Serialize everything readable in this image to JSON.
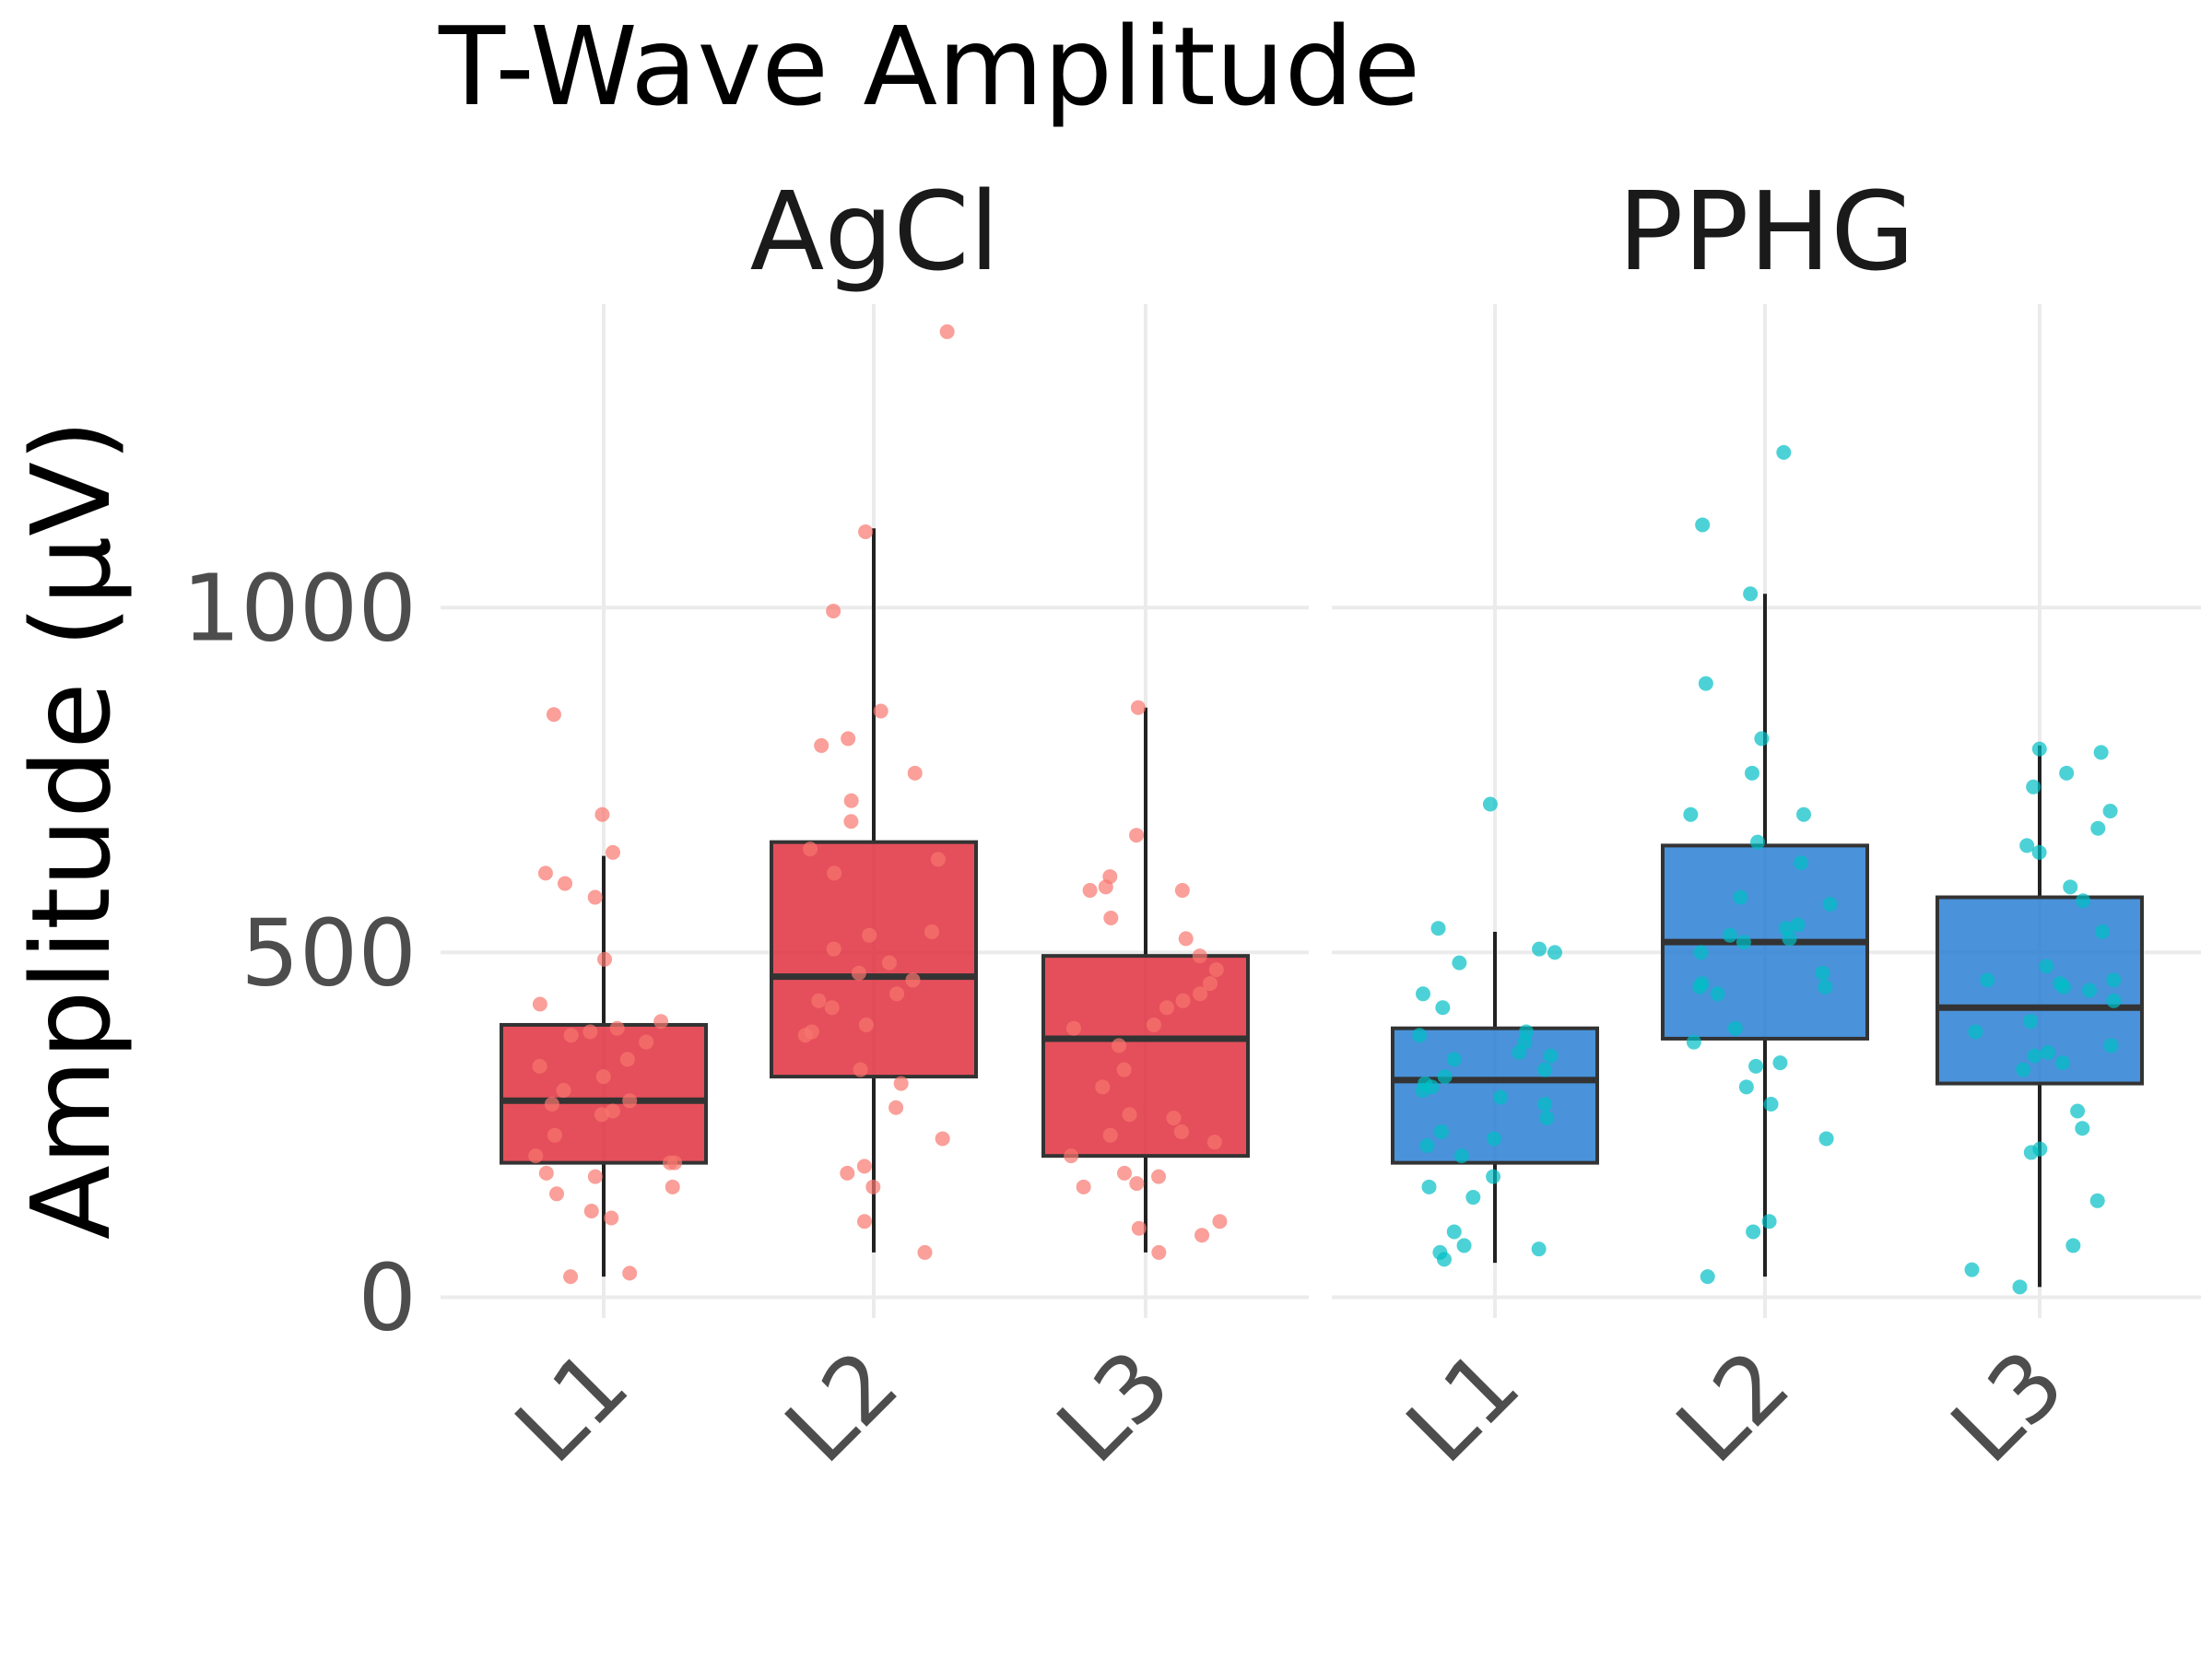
{
  "chart_data": {
    "type": "box",
    "title": "T-Wave Amplitude",
    "ylabel": "Amplitude (µV)",
    "xlabel": "",
    "ylim": [
      -30,
      1440
    ],
    "yticks": [
      0,
      500,
      1000
    ],
    "grid": true,
    "legend": "none",
    "categories": [
      "L1",
      "L2",
      "L3"
    ],
    "panels": [
      {
        "name": "AgCl",
        "box_color": "#e0303e",
        "point_color": "#f8766d",
        "boxes": [
          {
            "category": "L1",
            "q1": 195,
            "median": 285,
            "q3": 395,
            "whisker_low": 30,
            "whisker_high": 640
          },
          {
            "category": "L2",
            "q1": 320,
            "median": 465,
            "q3": 660,
            "whisker_low": 65,
            "whisker_high": 1115
          },
          {
            "category": "L3",
            "q1": 205,
            "median": 375,
            "q3": 495,
            "whisker_low": 65,
            "whisker_high": 855
          }
        ],
        "points": [
          {
            "category": "L1",
            "values": [
              700,
              645,
              615,
              600,
              580,
              490,
              425,
              400,
              390,
              385,
              380,
              370,
              345,
              335,
              320,
              300,
              285,
              280,
              270,
              265,
              235,
              205,
              195,
              195,
              180,
              175,
              160,
              150,
              125,
              115,
              35,
              30,
              845
            ]
          },
          {
            "category": "L2",
            "values": [
              1400,
              1110,
              995,
              850,
              810,
              800,
              760,
              720,
              690,
              650,
              635,
              615,
              530,
              525,
              505,
              485,
              470,
              460,
              440,
              430,
              420,
              395,
              385,
              380,
              330,
              310,
              275,
              230,
              180,
              190,
              160,
              110,
              65
            ]
          },
          {
            "category": "L3",
            "values": [
              855,
              670,
              610,
              595,
              590,
              590,
              550,
              520,
              495,
              475,
              455,
              440,
              430,
              420,
              395,
              390,
              365,
              330,
              305,
              265,
              260,
              240,
              235,
              225,
              205,
              180,
              175,
              165,
              160,
              110,
              100,
              90,
              65
            ]
          }
        ]
      },
      {
        "name": "PPHG",
        "box_color": "#2a7fd4",
        "point_color": "#00bfc4",
        "boxes": [
          {
            "category": "L1",
            "q1": 195,
            "median": 315,
            "q3": 390,
            "whisker_low": 50,
            "whisker_high": 530
          },
          {
            "category": "L2",
            "q1": 375,
            "median": 515,
            "q3": 655,
            "whisker_low": 30,
            "whisker_high": 1020
          },
          {
            "category": "L3",
            "q1": 310,
            "median": 420,
            "q3": 580,
            "whisker_low": 15,
            "whisker_high": 800
          }
        ],
        "points": [
          {
            "category": "L1",
            "values": [
              715,
              535,
              505,
              500,
              485,
              440,
              420,
              385,
              370,
              355,
              350,
              345,
              330,
              320,
              310,
              305,
              300,
              290,
              280,
              260,
              240,
              230,
              220,
              205,
              175,
              160,
              145,
              95,
              75,
              70,
              65,
              55,
              380
            ]
          },
          {
            "category": "L2",
            "values": [
              1225,
              1120,
              1020,
              890,
              810,
              760,
              700,
              700,
              660,
              630,
              580,
              570,
              540,
              535,
              525,
              515,
              500,
              470,
              455,
              450,
              440,
              390,
              370,
              340,
              335,
              305,
              280,
              230,
              110,
              95,
              30,
              450,
              520
            ]
          },
          {
            "category": "L3",
            "values": [
              795,
              790,
              760,
              740,
              705,
              680,
              655,
              645,
              595,
              575,
              530,
              480,
              460,
              455,
              445,
              400,
              385,
              365,
              355,
              340,
              330,
              270,
              245,
              215,
              210,
              140,
              75,
              40,
              15,
              350,
              430,
              450,
              460
            ]
          }
        ]
      }
    ]
  }
}
